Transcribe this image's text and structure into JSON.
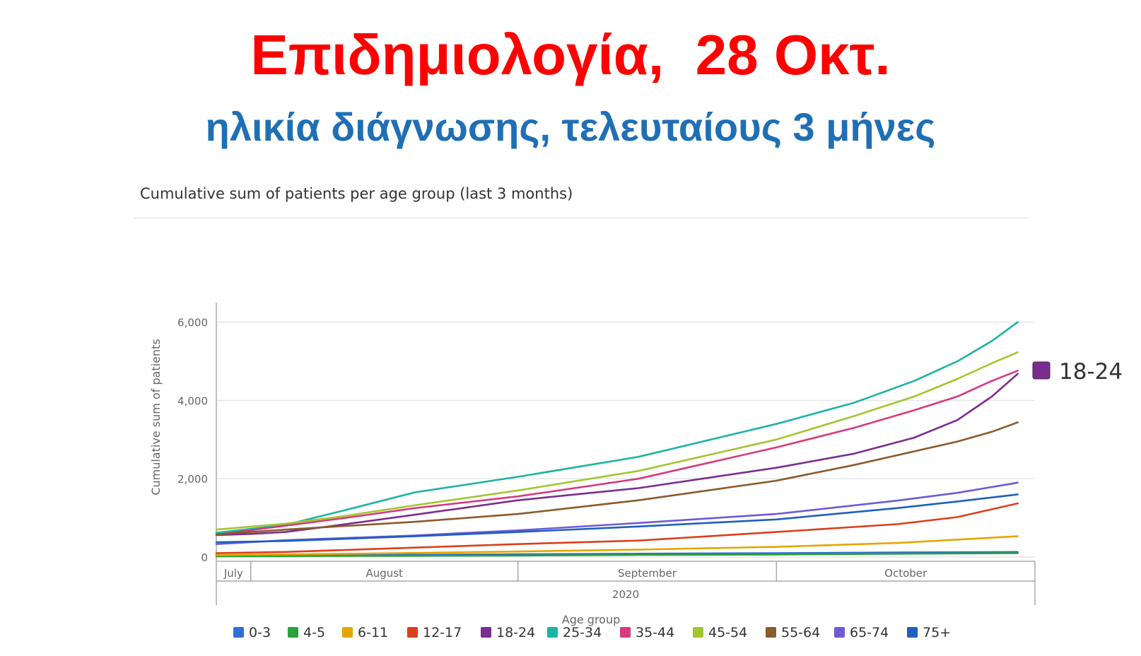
{
  "slide": {
    "title": "Επιδημιολογία,  28 Οκτ.",
    "subtitle": "ηλικία διάγνωσης, τελευταίους 3 μήνες",
    "title_color": "#ff0000",
    "subtitle_color": "#1f6fb5"
  },
  "chart_data": {
    "type": "line",
    "title": "Cumulative sum of patients per age group (last 3 months)",
    "xlabel": "",
    "ylabel": "Cumulative sum of patients",
    "ylim": [
      0,
      6500
    ],
    "xlim": [
      "2020-07-28",
      "2020-10-31"
    ],
    "yticks": [
      0,
      2000,
      4000,
      6000
    ],
    "ytick_labels": [
      "0",
      "2,000",
      "4,000",
      "6,000"
    ],
    "grid": true,
    "x_axis": {
      "months": [
        {
          "label": "July",
          "start": "2020-07-28",
          "end": "2020-08-01"
        },
        {
          "label": "August",
          "start": "2020-08-01",
          "end": "2020-09-01"
        },
        {
          "label": "September",
          "start": "2020-09-01",
          "end": "2020-10-01"
        },
        {
          "label": "October",
          "start": "2020-10-01",
          "end": "2020-10-31"
        }
      ],
      "year": "2020"
    },
    "legend_title": "Age group",
    "legend_position": "bottom",
    "highlight_label": "18-24",
    "highlight_color": "#7b2d8e",
    "series": [
      {
        "name": "0-3",
        "color": "#2f6fd6",
        "x": [
          "2020-07-28",
          "2020-08-15",
          "2020-09-01",
          "2020-09-15",
          "2020-10-01",
          "2020-10-15",
          "2020-10-29"
        ],
        "y": [
          40,
          55,
          70,
          85,
          100,
          115,
          130
        ]
      },
      {
        "name": "4-5",
        "color": "#2aa13b",
        "x": [
          "2020-07-28",
          "2020-08-15",
          "2020-09-01",
          "2020-09-15",
          "2020-10-01",
          "2020-10-15",
          "2020-10-29"
        ],
        "y": [
          20,
          30,
          40,
          55,
          65,
          85,
          100
        ]
      },
      {
        "name": "6-11",
        "color": "#e5a500",
        "x": [
          "2020-07-28",
          "2020-08-15",
          "2020-09-01",
          "2020-09-15",
          "2020-10-01",
          "2020-10-15",
          "2020-10-29"
        ],
        "y": [
          50,
          90,
          140,
          190,
          260,
          360,
          530
        ]
      },
      {
        "name": "12-17",
        "color": "#d9401c",
        "x": [
          "2020-07-28",
          "2020-08-05",
          "2020-08-20",
          "2020-09-01",
          "2020-09-15",
          "2020-10-01",
          "2020-10-15",
          "2020-10-22",
          "2020-10-29"
        ],
        "y": [
          100,
          130,
          240,
          330,
          420,
          640,
          840,
          1020,
          1370
        ]
      },
      {
        "name": "18-24",
        "color": "#7b2d8e",
        "x": [
          "2020-07-28",
          "2020-08-01",
          "2020-08-05",
          "2020-08-10",
          "2020-08-20",
          "2020-09-01",
          "2020-09-15",
          "2020-10-01",
          "2020-10-10",
          "2020-10-17",
          "2020-10-22",
          "2020-10-26",
          "2020-10-29"
        ],
        "y": [
          560,
          590,
          640,
          780,
          1080,
          1450,
          1760,
          2280,
          2640,
          3050,
          3500,
          4100,
          4680
        ]
      },
      {
        "name": "25-34",
        "color": "#1db3a3",
        "x": [
          "2020-07-28",
          "2020-08-05",
          "2020-08-12",
          "2020-08-20",
          "2020-09-01",
          "2020-09-15",
          "2020-10-01",
          "2020-10-10",
          "2020-10-17",
          "2020-10-22",
          "2020-10-26",
          "2020-10-29"
        ],
        "y": [
          620,
          820,
          1200,
          1650,
          2050,
          2560,
          3400,
          3940,
          4500,
          5000,
          5520,
          6000
        ]
      },
      {
        "name": "35-44",
        "color": "#d63a7f",
        "x": [
          "2020-07-28",
          "2020-08-05",
          "2020-08-12",
          "2020-08-20",
          "2020-09-01",
          "2020-09-15",
          "2020-10-01",
          "2020-10-10",
          "2020-10-17",
          "2020-10-22",
          "2020-10-26",
          "2020-10-29"
        ],
        "y": [
          570,
          800,
          1000,
          1250,
          1550,
          2000,
          2800,
          3300,
          3750,
          4100,
          4500,
          4760
        ]
      },
      {
        "name": "45-54",
        "color": "#a2c62f",
        "x": [
          "2020-07-28",
          "2020-08-05",
          "2020-08-12",
          "2020-08-20",
          "2020-09-01",
          "2020-09-15",
          "2020-10-01",
          "2020-10-10",
          "2020-10-17",
          "2020-10-22",
          "2020-10-26",
          "2020-10-29"
        ],
        "y": [
          700,
          850,
          1050,
          1320,
          1700,
          2200,
          3000,
          3600,
          4100,
          4550,
          4950,
          5230
        ]
      },
      {
        "name": "55-64",
        "color": "#8b5a2b",
        "x": [
          "2020-07-28",
          "2020-08-05",
          "2020-08-20",
          "2020-09-01",
          "2020-09-15",
          "2020-10-01",
          "2020-10-10",
          "2020-10-17",
          "2020-10-22",
          "2020-10-26",
          "2020-10-29"
        ],
        "y": [
          580,
          700,
          900,
          1100,
          1450,
          1950,
          2350,
          2700,
          2950,
          3200,
          3440
        ]
      },
      {
        "name": "65-74",
        "color": "#6e5ad6",
        "x": [
          "2020-07-28",
          "2020-08-05",
          "2020-08-20",
          "2020-09-01",
          "2020-09-15",
          "2020-10-01",
          "2020-10-15",
          "2020-10-22",
          "2020-10-29"
        ],
        "y": [
          330,
          430,
          550,
          680,
          870,
          1100,
          1440,
          1640,
          1900
        ]
      },
      {
        "name": "75+",
        "color": "#1f5fbf",
        "x": [
          "2020-07-28",
          "2020-08-05",
          "2020-08-20",
          "2020-09-01",
          "2020-09-15",
          "2020-10-01",
          "2020-10-15",
          "2020-10-22",
          "2020-10-29"
        ],
        "y": [
          380,
          410,
          530,
          640,
          780,
          960,
          1250,
          1420,
          1600
        ]
      }
    ]
  }
}
